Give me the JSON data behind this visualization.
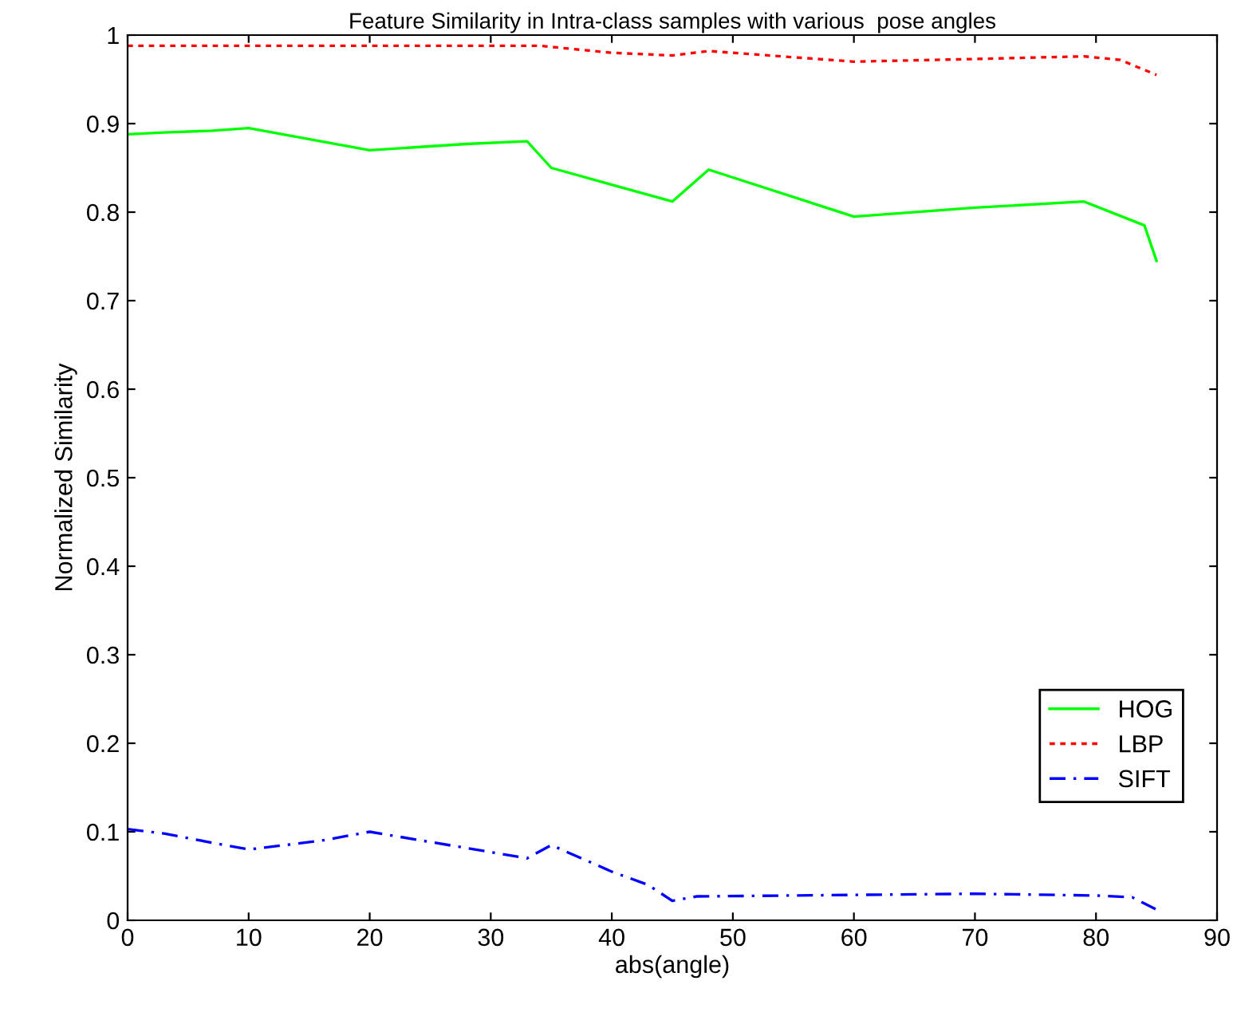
{
  "chart_data": {
    "type": "line",
    "title": "Feature Similarity in Intra-class samples with various  pose angles",
    "xlabel": "abs(angle)",
    "ylabel": "Normalized Similarity",
    "xlim": [
      0,
      90
    ],
    "xticks": [
      0,
      10,
      20,
      30,
      40,
      50,
      60,
      70,
      80,
      90
    ],
    "ylim": [
      0,
      1
    ],
    "yticks": [
      0,
      0.1,
      0.2,
      0.3,
      0.4,
      0.5,
      0.6,
      0.7,
      0.8,
      0.9,
      1
    ],
    "grid": false,
    "legend": "bottom right",
    "marker": "none",
    "series": [
      {
        "name": "HOG",
        "color": "#00ff00",
        "line_style": "solid",
        "x": [
          0,
          3,
          7,
          10,
          20,
          28,
          33,
          35,
          45,
          48,
          60,
          70,
          79,
          84,
          85
        ],
        "values": [
          0.888,
          0.89,
          0.892,
          0.895,
          0.87,
          0.877,
          0.88,
          0.85,
          0.812,
          0.848,
          0.795,
          0.805,
          0.812,
          0.785,
          0.745
        ]
      },
      {
        "name": "LBP",
        "color": "#ff0000",
        "line_style": "dotted",
        "x": [
          0,
          34,
          40,
          45,
          48,
          60,
          70,
          79,
          82,
          85
        ],
        "values": [
          0.988,
          0.988,
          0.98,
          0.977,
          0.982,
          0.97,
          0.973,
          0.976,
          0.972,
          0.955
        ]
      },
      {
        "name": "SIFT",
        "color": "#0000ff",
        "line_style": "dashdot",
        "x": [
          0,
          3,
          8,
          10,
          16,
          20,
          30,
          33,
          35,
          40,
          43,
          45,
          47,
          70,
          80,
          83,
          85
        ],
        "values": [
          0.103,
          0.098,
          0.085,
          0.08,
          0.09,
          0.1,
          0.077,
          0.07,
          0.085,
          0.055,
          0.04,
          0.022,
          0.027,
          0.03,
          0.028,
          0.026,
          0.012
        ]
      }
    ]
  }
}
